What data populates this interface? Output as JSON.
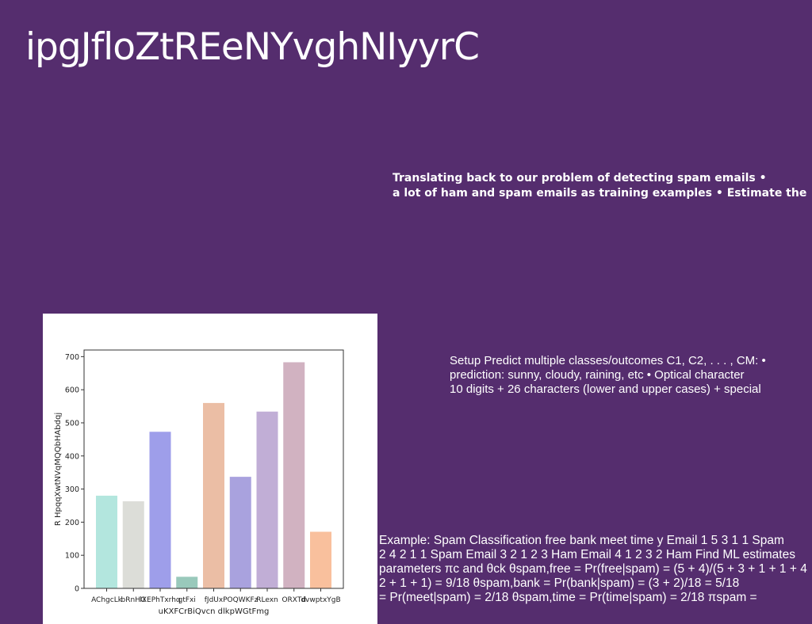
{
  "slide": {
    "title": "ipgJfloZtREeNYvghNIyyrC",
    "bold_lines": [
      "Translating back to our problem of detecting spam emails •",
      "a lot of ham and spam emails as training examples • Estimate the"
    ],
    "setup_lines": [
      "Setup Predict multiple classes/outcomes C1, C2, . . . , CM: •",
      "prediction: sunny, cloudy, raining, etc • Optical character",
      "10 digits + 26 characters (lower and upper cases) + special"
    ],
    "example_lines": [
      "Example: Spam Classification free bank meet time y Email 1 5 3 1 1 Spam",
      "2 4 2 1 1 Spam Email 3 2 1 2 3 Ham Email 4 1 2 3 2 Ham Find ML estimates",
      "parameters πc and θck θspam,free = Pr(free|spam) = (5 + 4)/(5 + 3 + 1 + 1 + 4",
      "2 + 1 + 1) = 9/18 θspam,bank = Pr(bank|spam) = (3 + 2)/18 = 5/18",
      "= Pr(meet|spam) = 2/18 θspam,time = Pr(time|spam) = 2/18 πspam ="
    ]
  },
  "chart_data": {
    "type": "bar",
    "title": "",
    "xlabel": "uKXFCrBiQvcn dlkpWGtFmg",
    "ylabel": "R HpqqXwtNVqMQQbHAbdqj",
    "categories": [
      "AChgcLk",
      "bRnHG",
      "lXEPhTxrhq",
      "gtFxi",
      "fJdUx",
      "POQWKFz",
      "RLexn",
      "ORXTd",
      "dvwptxYgB"
    ],
    "values": [
      280,
      263,
      473,
      35,
      560,
      337,
      534,
      683,
      171
    ],
    "colors": [
      "#b3e6de",
      "#dcddd8",
      "#9e9eea",
      "#99c9bb",
      "#ebbea5",
      "#a9a2de",
      "#c1aed6",
      "#d1b2c1",
      "#f9c09d"
    ],
    "ylim": [
      0,
      720
    ],
    "yticks": [
      0,
      100,
      200,
      300,
      400,
      500,
      600,
      700
    ],
    "grid": false
  }
}
